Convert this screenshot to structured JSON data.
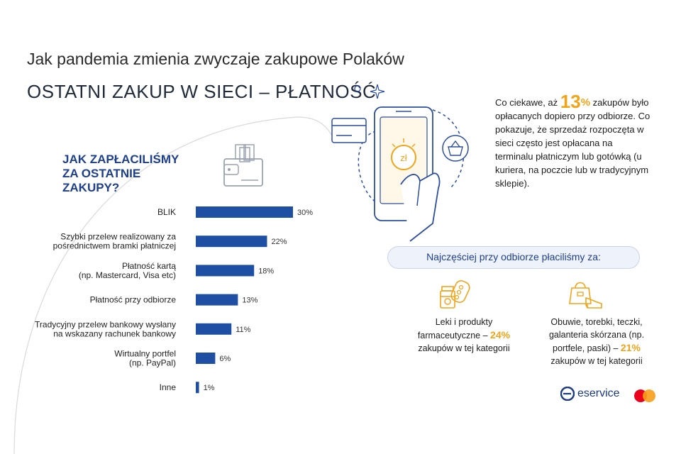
{
  "header": {
    "title": "Jak pandemia zmienia zwyczaje zakupowe Polaków",
    "subtitle": "OSTATNI ZAKUP W SIECI – PŁATNOŚĆ"
  },
  "chart_heading_lines": [
    "JAK ZAPŁACILIŚMY",
    "ZA OSTATNIE",
    "ZAKUPY?"
  ],
  "chart_data": {
    "type": "bar",
    "orientation": "horizontal",
    "title": "JAK ZAPŁACILIŚMY ZA OSTATNIE ZAKUPY?",
    "categories": [
      [
        "BLIK"
      ],
      [
        "Szybki przelew realizowany za",
        "pośrednictwem bramki płatniczej"
      ],
      [
        "Płatność kartą",
        "(np. Mastercard, Visa etc)"
      ],
      [
        "Płatność przy odbiorze"
      ],
      [
        "Tradycyjny przelew bankowy wysłany",
        "na wskazany rachunek bankowy"
      ],
      [
        "Wirtualny portfel",
        "(np. PayPal)"
      ],
      [
        "Inne"
      ]
    ],
    "values": [
      30,
      22,
      18,
      13,
      11,
      6,
      1
    ],
    "value_labels": [
      "30%",
      "22%",
      "18%",
      "13%",
      "11%",
      "6%",
      "1%"
    ],
    "xlim": [
      0,
      30
    ],
    "grid": false,
    "bar_color": "#1f4fa3"
  },
  "info": {
    "prefix": "Co ciekawe, aż",
    "big_number": "13",
    "percent": "%",
    "suffix": "zakupów było opłacanych dopiero przy odbiorze. Co pokazuje, że sprzedaż rozpoczęta w sieci często jest opłacana na terminalu płatniczym lub gotówką (u kuriera, na poczcie lub w tradycyjnym sklepie)."
  },
  "pill_text": "Najczęściej przy odbiorze płaciliśmy za:",
  "categories_cod": [
    {
      "line1": "Leki i produkty",
      "line2_text": "farmaceutyczne – ",
      "highlight": "24%",
      "line3": "zakupów w tej kategorii",
      "icon": "medicine-icon"
    },
    {
      "line1": "Obuwie, torebki, teczki,",
      "line2_text": "galanteria skórzana (np. portfele, paski) – ",
      "highlight": "21%",
      "line3": "zakupów w tej kategorii",
      "icon": "shoe-bag-icon"
    }
  ],
  "phone_icon_text": "zł",
  "brand": "eservice",
  "colors": {
    "accent": "#f2a317",
    "brand_blue": "#1e3f8c",
    "bar": "#1f4fa3",
    "mastercard_red": "#eb001b",
    "mastercard_yellow": "#f79e1b"
  }
}
